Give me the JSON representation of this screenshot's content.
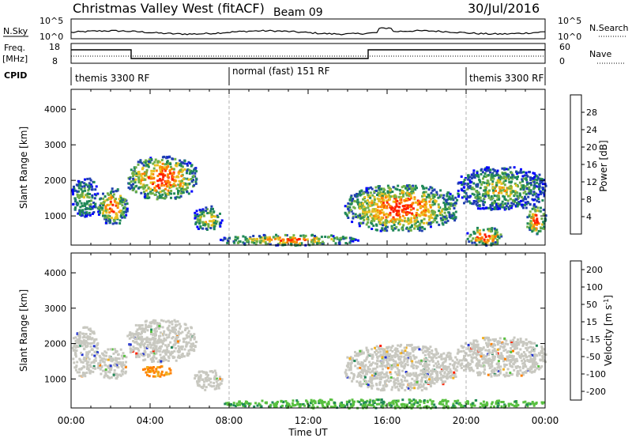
{
  "header": {
    "station": "Christmas Valley West (fitACF)",
    "beam": "Beam 09",
    "date": "30/Jul/2016"
  },
  "panels": {
    "nsky": {
      "label": "N.Sky",
      "left_ticks": [
        "10^5",
        "10^0"
      ],
      "right_ticks": [
        "10^5",
        "10^0"
      ],
      "legend_label": "N.Search"
    },
    "freq": {
      "label_line1": "Freq.",
      "label_line2": "[MHz]",
      "left_ticks": [
        "18",
        "8"
      ],
      "right_ticks": [
        "60",
        "0"
      ],
      "legend_label": "Nave"
    },
    "cpid": {
      "label": "CPID",
      "segments": [
        {
          "text": "themis 3300 RF",
          "start_hour": 0
        },
        {
          "text": "normal (fast) 151 RF",
          "start_hour": 8
        },
        {
          "text": "themis 3300 RF",
          "start_hour": 20
        }
      ]
    }
  },
  "chart_data": [
    {
      "type": "heatmap",
      "panel": "power",
      "ylabel": "Slant Range [km]",
      "xlabel": "",
      "ylim": [
        180,
        4560
      ],
      "y_ticks": [
        1000,
        2000,
        3000,
        4000
      ],
      "colorbar": {
        "label": "Power [dB]",
        "range": [
          0,
          32
        ],
        "tick_labels": [
          "4",
          "8",
          "12",
          "16",
          "20",
          "24",
          "28"
        ],
        "colors": [
          "#0000ff",
          "#2040b0",
          "#208858",
          "#70b048",
          "#e8c020",
          "#ff8000",
          "#ff2000"
        ]
      },
      "blobs": [
        {
          "t0": 0.0,
          "t1": 1.3,
          "r0": 1000,
          "r1": 2100,
          "level": 0.45
        },
        {
          "t0": 1.3,
          "t1": 2.8,
          "r0": 800,
          "r1": 1800,
          "level": 0.75
        },
        {
          "t0": 2.8,
          "t1": 6.3,
          "r0": 1500,
          "r1": 2700,
          "level": 0.8
        },
        {
          "t0": 6.2,
          "t1": 7.6,
          "r0": 600,
          "r1": 1300,
          "level": 0.6
        },
        {
          "t0": 7.5,
          "t1": 14.5,
          "r0": 200,
          "r1": 500,
          "level": 0.7
        },
        {
          "t0": 13.8,
          "t1": 19.5,
          "r0": 600,
          "r1": 1900,
          "level": 0.8
        },
        {
          "t0": 19.5,
          "t1": 24.0,
          "r0": 1200,
          "r1": 2400,
          "level": 0.5
        },
        {
          "t0": 20.0,
          "t1": 21.8,
          "r0": 200,
          "r1": 700,
          "level": 0.85
        },
        {
          "t0": 23.0,
          "t1": 24.0,
          "r0": 500,
          "r1": 1300,
          "level": 0.8
        }
      ]
    },
    {
      "type": "heatmap",
      "panel": "velocity",
      "ylabel": "Slant Range [km]",
      "xlabel": "Time UT",
      "ylim": [
        180,
        4560
      ],
      "y_ticks": [
        1000,
        2000,
        3000,
        4000
      ],
      "x_tick_labels": [
        "00:00",
        "04:00",
        "08:00",
        "12:00",
        "16:00",
        "20:00",
        "00:00"
      ],
      "x_tick_hours": [
        0,
        4,
        8,
        12,
        16,
        20,
        24
      ],
      "colorbar": {
        "label": "Velocity [m s^-1]",
        "tick_labels": [
          "200",
          "100",
          "50",
          "15",
          "-15",
          "-50",
          "-100",
          "-200"
        ],
        "colors": [
          "#2030d0",
          "#208858",
          "#58c040",
          "#c8c8c0",
          "#f0b020",
          "#ff8000",
          "#ff2000"
        ]
      },
      "ground_scatter_color": "#c8c8c0",
      "blobs": [
        {
          "t0": 0.0,
          "t1": 1.3,
          "r0": 1100,
          "r1": 2500,
          "level": 0.5
        },
        {
          "t0": 1.3,
          "t1": 2.8,
          "r0": 1000,
          "r1": 1900,
          "level": 0.5
        },
        {
          "t0": 2.8,
          "t1": 6.3,
          "r0": 1500,
          "r1": 2700,
          "level": 0.5
        },
        {
          "t0": 3.5,
          "t1": 5.0,
          "r0": 1100,
          "r1": 1400,
          "level": 0.15
        },
        {
          "t0": 6.2,
          "t1": 7.6,
          "r0": 700,
          "r1": 1300,
          "level": 0.5
        },
        {
          "t0": 13.8,
          "t1": 19.5,
          "r0": 700,
          "r1": 2000,
          "level": 0.5
        },
        {
          "t0": 19.5,
          "t1": 24.0,
          "r0": 1100,
          "r1": 2200,
          "level": 0.5
        },
        {
          "t0": 7.5,
          "t1": 24.0,
          "r0": 200,
          "r1": 450,
          "level": 0.9
        }
      ]
    }
  ]
}
